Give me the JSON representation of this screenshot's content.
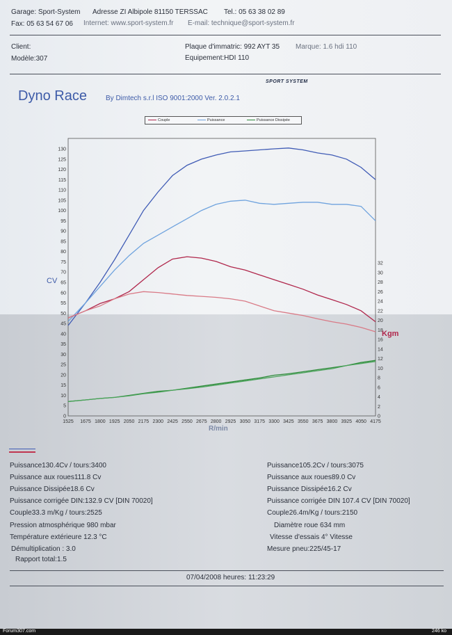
{
  "header": {
    "garage": "Garage: Sport-System",
    "adresse": "Adresse ZI Albipole 81150 TERSSAC",
    "tel": "Tel.: 05 63 38 02 89",
    "fax": "Fax: 05 63 54 67 06",
    "internet": "Internet: www.sport-system.fr",
    "email": "E-mail: technique@sport-system.fr"
  },
  "client": {
    "client_label": "Client:",
    "modele": "Modèle:307",
    "plaque": "Plaque d'immatric: 992 AYT 35",
    "marque": "Marque: 1.6 hdi 110",
    "equipement": "Equipement:HDI 110"
  },
  "report": {
    "title": "Dyno Race",
    "subtitle": "By Dimtech s.r.l  ISO 9001:2000  Ver. 2.0.2.1",
    "logo": "SPORT SYSTEM"
  },
  "legend": [
    "Couple",
    "Puissance",
    "Puissance Dissipée"
  ],
  "chart_data": {
    "type": "line",
    "xlabel": "R/min",
    "ylabel": "CV",
    "y2label": "Kgm",
    "x_ticks": [
      1525,
      1675,
      1800,
      1925,
      2050,
      2175,
      2300,
      2425,
      2550,
      2675,
      2800,
      2925,
      3050,
      3175,
      3300,
      3425,
      3550,
      3675,
      3800,
      3925,
      4050,
      4175
    ],
    "xlim": [
      1525,
      4175
    ],
    "ylim": [
      0,
      130
    ],
    "y_ticks": [
      0,
      5,
      10,
      15,
      20,
      25,
      30,
      35,
      40,
      45,
      50,
      55,
      60,
      65,
      70,
      75,
      80,
      85,
      90,
      95,
      100,
      105,
      110,
      115,
      120,
      125,
      130
    ],
    "y2lim": [
      0,
      32
    ],
    "y2_ticks": [
      0,
      2,
      4,
      6,
      8,
      10,
      12,
      14,
      16,
      18,
      20,
      22,
      24,
      26,
      28,
      30,
      32
    ],
    "series": [
      {
        "name": "Puissance",
        "color": "#3f5bb5",
        "axis": "left",
        "x": [
          1525,
          1675,
          1800,
          1925,
          2050,
          2175,
          2300,
          2425,
          2550,
          2675,
          2800,
          2925,
          3050,
          3175,
          3300,
          3425,
          3550,
          3675,
          3800,
          3925,
          4050,
          4175
        ],
        "y": [
          44,
          55,
          65,
          76,
          88,
          100,
          109,
          117,
          122,
          125,
          127,
          128.5,
          129,
          129.5,
          130,
          130.4,
          129.5,
          128,
          127,
          125,
          121,
          115
        ]
      },
      {
        "name": "Puissance",
        "color": "#6fa3de",
        "axis": "left",
        "x": [
          1525,
          1675,
          1800,
          1925,
          2050,
          2175,
          2300,
          2425,
          2550,
          2675,
          2800,
          2925,
          3050,
          3175,
          3300,
          3425,
          3550,
          3675,
          3800,
          3925,
          4050,
          4175
        ],
        "y": [
          46,
          55,
          63,
          71,
          78,
          84,
          88,
          92,
          96,
          100,
          103,
          104.5,
          105,
          103.5,
          103,
          103.5,
          104,
          104,
          103,
          103,
          102,
          95
        ]
      },
      {
        "name": "Couple",
        "color": "#b0264b",
        "axis": "right",
        "x": [
          1525,
          1675,
          1800,
          1925,
          2050,
          2175,
          2300,
          2425,
          2550,
          2675,
          2800,
          2925,
          3050,
          3175,
          3300,
          3425,
          3550,
          3675,
          3800,
          3925,
          4050,
          4175
        ],
        "y": [
          20.5,
          22,
          23.5,
          24.5,
          26,
          28.5,
          31,
          32.8,
          33.3,
          33,
          32.3,
          31.2,
          30.5,
          29.5,
          28.5,
          27.5,
          26.5,
          25.3,
          24.3,
          23.3,
          22,
          19.7
        ]
      },
      {
        "name": "Couple",
        "color": "#d97a86",
        "axis": "right",
        "x": [
          1525,
          1675,
          1800,
          1925,
          2050,
          2175,
          2300,
          2425,
          2550,
          2675,
          2800,
          2925,
          3050,
          3175,
          3300,
          3425,
          3550,
          3675,
          3800,
          3925,
          4050,
          4175
        ],
        "y": [
          20.5,
          22,
          23,
          24.5,
          25.5,
          26,
          25.8,
          25.5,
          25.2,
          25,
          24.8,
          24.5,
          24,
          23,
          22,
          21.5,
          21,
          20.3,
          19.7,
          19.2,
          18.5,
          17.6
        ]
      },
      {
        "name": "Puissance Dissipée",
        "color": "#2e8b3a",
        "axis": "left",
        "x": [
          1525,
          1675,
          1800,
          1925,
          2050,
          2175,
          2300,
          2425,
          2550,
          2675,
          2800,
          2925,
          3050,
          3175,
          3300,
          3425,
          3550,
          3675,
          3800,
          3925,
          4050,
          4175
        ],
        "y": [
          7,
          7.8,
          8.5,
          9,
          10,
          11,
          12,
          12.5,
          13.5,
          14.5,
          15.5,
          16.5,
          17.5,
          18.5,
          19.8,
          20.5,
          21.5,
          22.5,
          23.5,
          24.5,
          26,
          27
        ]
      },
      {
        "name": "Puissance Dissipée",
        "color": "#4aa35a",
        "axis": "left",
        "x": [
          1525,
          1675,
          1800,
          1925,
          2050,
          2175,
          2300,
          2425,
          2550,
          2675,
          2800,
          2925,
          3050,
          3175,
          3300,
          3425,
          3550,
          3675,
          3800,
          3925,
          4050,
          4175
        ],
        "y": [
          7,
          7.8,
          8.5,
          9,
          9.8,
          10.8,
          11.5,
          12.5,
          13.2,
          14,
          15,
          16,
          17,
          18,
          19,
          20,
          21,
          22,
          23,
          24.5,
          25.5,
          26.5
        ]
      }
    ]
  },
  "results_left": [
    "Puissance130.4Cv / tours:3400",
    "Puissance aux roues111.8 Cv",
    "Puissance Dissipée18.6 Cv",
    "Puissance corrigée DIN:132.9 CV  [DIN 70020]",
    "Couple33.3 m/Kg / tours:2525",
    "Pression atmosphérique 980 mbar",
    "Température extérieure 12.3 °C",
    "Démultiplication : 3.0",
    "Rapport total:1.5"
  ],
  "results_right": [
    "Puissance105.2Cv / tours:3075",
    "Puissance aux roues89.0 Cv",
    "Puissance Dissipée16.2 Cv",
    "Puissance corrigée DIN 107.4 CV [DIN 70020]",
    "Couple26.4m/Kg / tours:2150",
    "Diamètre roue 634 mm",
    "Vitesse d'essais 4° Vitesse",
    "Mesure pneu:225/45-17"
  ],
  "datetime": "07/04/2008 heures: 11:23:29",
  "footer": {
    "site": "Forum307.com",
    "size": "246 ko"
  }
}
